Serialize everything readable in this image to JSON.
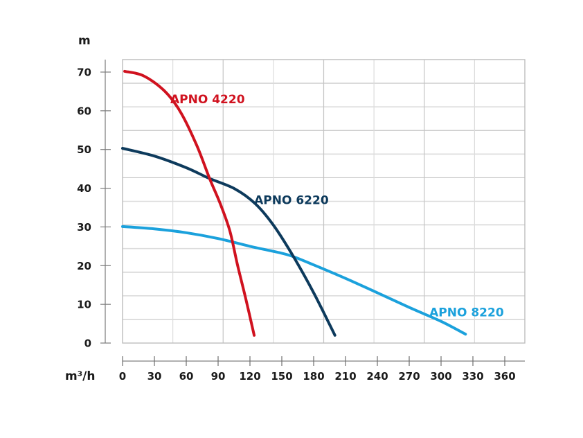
{
  "chart_data": {
    "type": "line",
    "title": "",
    "xlabel": "m³/h",
    "ylabel": "m",
    "xlim": [
      0,
      378
    ],
    "ylim": [
      0,
      73
    ],
    "x_ticks": [
      0,
      30,
      60,
      90,
      120,
      150,
      180,
      210,
      240,
      270,
      300,
      330,
      360
    ],
    "x_tick_labels": [
      "0",
      "30",
      "60",
      "90",
      "120",
      "150",
      "180",
      "210",
      "240",
      "270",
      "300",
      "330",
      "360"
    ],
    "y_ticks": [
      0,
      10,
      20,
      30,
      40,
      50,
      60,
      70
    ],
    "y_tick_labels": [
      "0",
      "10",
      "20",
      "30",
      "40",
      "50",
      "60",
      "70"
    ],
    "grid": true,
    "legend": "inline labels",
    "series": [
      {
        "name": "APNO 4220",
        "color": "#d0121f",
        "points": [
          [
            2,
            70.2
          ],
          [
            20,
            69
          ],
          [
            40,
            65
          ],
          [
            55,
            59.5
          ],
          [
            70,
            51
          ],
          [
            82,
            42.5
          ],
          [
            92,
            36
          ],
          [
            101,
            29
          ],
          [
            108,
            20.5
          ],
          [
            116,
            11.5
          ],
          [
            124,
            2
          ]
        ]
      },
      {
        "name": "APNO 6220",
        "color": "#0d3a5c",
        "points": [
          [
            0,
            50.3
          ],
          [
            30,
            48.3
          ],
          [
            60,
            45.3
          ],
          [
            82,
            42.5
          ],
          [
            106,
            39.8
          ],
          [
            125,
            36
          ],
          [
            142,
            30.5
          ],
          [
            161,
            22.3
          ],
          [
            180,
            13
          ],
          [
            200,
            2
          ]
        ]
      },
      {
        "name": "APNO 8220",
        "color": "#1ba1dc",
        "points": [
          [
            0,
            30.1
          ],
          [
            30,
            29.5
          ],
          [
            60,
            28.5
          ],
          [
            90,
            27
          ],
          [
            120,
            25
          ],
          [
            150,
            23.2
          ],
          [
            161,
            22.3
          ],
          [
            180,
            20.2
          ],
          [
            210,
            16.7
          ],
          [
            240,
            13
          ],
          [
            270,
            9.2
          ],
          [
            300,
            5.6
          ],
          [
            323,
            2.3
          ]
        ]
      }
    ],
    "annotations": [
      {
        "text": "APNO 4220",
        "series": "APNO 4220",
        "x": 45,
        "y": 63
      },
      {
        "text": "APNO 6220",
        "series": "APNO 6220",
        "x": 124,
        "y": 37
      },
      {
        "text": "APNO 8220",
        "series": "APNO 8220",
        "x": 289,
        "y": 8
      }
    ]
  }
}
